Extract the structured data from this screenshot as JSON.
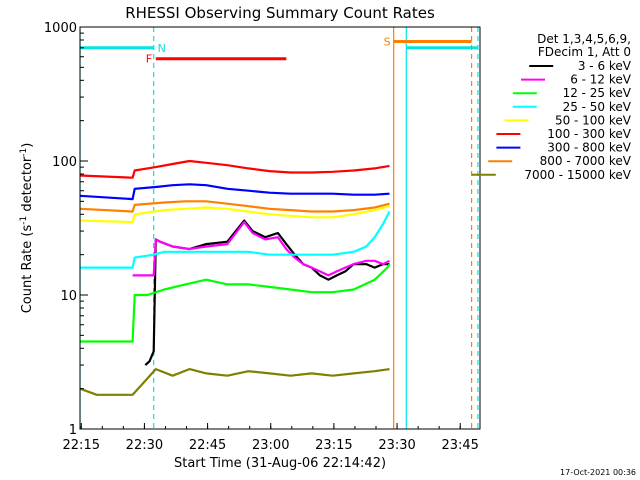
{
  "chart_data": {
    "type": "line",
    "title": "RHESSI Observing Summary Count Rates",
    "xlabel": "Start Time (31-Aug-06 22:14:42)",
    "ylabel_main": "Count Rate (s",
    "ylabel_sup1": "-1",
    "ylabel_mid": " detector",
    "ylabel_sup2": "-1",
    "ylabel_end": ")",
    "y_scale": "log",
    "ylim": [
      1,
      1000
    ],
    "xlim_minutes": [
      0,
      95
    ],
    "x_ticks": [
      {
        "label": "22:15",
        "min": 0.3
      },
      {
        "label": "22:30",
        "min": 15.3
      },
      {
        "label": "22:45",
        "min": 30.3
      },
      {
        "label": "23:00",
        "min": 45.3
      },
      {
        "label": "23:15",
        "min": 60.3
      },
      {
        "label": "23:30",
        "min": 75.3
      },
      {
        "label": "23:45",
        "min": 90.3
      }
    ],
    "y_ticks": [
      {
        "label": "1",
        "value": 1
      },
      {
        "label": "10",
        "value": 10
      },
      {
        "label": "100",
        "value": 100
      },
      {
        "label": "1000",
        "value": 1000
      }
    ],
    "legend_header": [
      "Det 1,3,4,5,6,9,",
      "FDecim 1, Att 0"
    ],
    "legend_placement": "right",
    "timestamp": "17-Oct-2021 00:36",
    "flags": [
      {
        "label": "N",
        "color": "#00e5e5",
        "level": 700,
        "segments": [
          [
            0,
            17.5
          ],
          [
            77.5,
            94.5
          ]
        ],
        "dashed_at": [
          17.5,
          94.5
        ],
        "solid_at": [
          0,
          77.5
        ]
      },
      {
        "label": "F",
        "color": "#ff0000",
        "level": 580,
        "segments": [
          [
            18,
            49
          ]
        ]
      },
      {
        "label": "S",
        "color": "#ff8000",
        "level": 780,
        "segments": [
          [
            74.5,
            93
          ]
        ],
        "solid_at": [
          74.5
        ],
        "dashed_at": [
          93
        ]
      }
    ],
    "series": [
      {
        "name": "3 - 6 keV",
        "color": "#000000",
        "points": [
          [
            15.5,
            3
          ],
          [
            16.5,
            3.2
          ],
          [
            17.5,
            3.8
          ],
          [
            18,
            26
          ],
          [
            19,
            25
          ],
          [
            22,
            23
          ],
          [
            26,
            22
          ],
          [
            30,
            24
          ],
          [
            35,
            25
          ],
          [
            37,
            30
          ],
          [
            39,
            36
          ],
          [
            41,
            30
          ],
          [
            44,
            27
          ],
          [
            47,
            29
          ],
          [
            49,
            24
          ],
          [
            51,
            20
          ],
          [
            53,
            17
          ],
          [
            55,
            16
          ],
          [
            57,
            14
          ],
          [
            59,
            13
          ],
          [
            61,
            14
          ],
          [
            63,
            15
          ],
          [
            65,
            17
          ],
          [
            68,
            17
          ],
          [
            70,
            16
          ],
          [
            72,
            17
          ],
          [
            73.5,
            17
          ]
        ]
      },
      {
        "name": "6 - 12 keV",
        "color": "#ff00ff",
        "points": [
          [
            12.5,
            14
          ],
          [
            17.5,
            14
          ],
          [
            18,
            26
          ],
          [
            19,
            25
          ],
          [
            22,
            23
          ],
          [
            26,
            22
          ],
          [
            30,
            23
          ],
          [
            35,
            24
          ],
          [
            37,
            29
          ],
          [
            39,
            35
          ],
          [
            41,
            29
          ],
          [
            44,
            26
          ],
          [
            47,
            27
          ],
          [
            49,
            22
          ],
          [
            51,
            19
          ],
          [
            53,
            17
          ],
          [
            55,
            16
          ],
          [
            57,
            15
          ],
          [
            59,
            14
          ],
          [
            61,
            15
          ],
          [
            63,
            16
          ],
          [
            65,
            17
          ],
          [
            68,
            18
          ],
          [
            70,
            18
          ],
          [
            72,
            17
          ],
          [
            73.5,
            18
          ]
        ]
      },
      {
        "name": "12 - 25 keV",
        "color": "#00ff00",
        "points": [
          [
            0,
            4.5
          ],
          [
            12.5,
            4.5
          ],
          [
            13,
            10
          ],
          [
            16,
            10
          ],
          [
            20,
            11
          ],
          [
            25,
            12
          ],
          [
            30,
            13
          ],
          [
            35,
            12
          ],
          [
            40,
            12
          ],
          [
            45,
            11.5
          ],
          [
            50,
            11
          ],
          [
            55,
            10.5
          ],
          [
            60,
            10.5
          ],
          [
            65,
            11
          ],
          [
            70,
            13
          ],
          [
            73,
            16
          ],
          [
            73.5,
            17
          ]
        ]
      },
      {
        "name": "25 - 50 keV",
        "color": "#00ffff",
        "points": [
          [
            0,
            16
          ],
          [
            12.5,
            16
          ],
          [
            13,
            19
          ],
          [
            17.5,
            20
          ],
          [
            20,
            21
          ],
          [
            25,
            21
          ],
          [
            30,
            21
          ],
          [
            35,
            21
          ],
          [
            40,
            21
          ],
          [
            45,
            20
          ],
          [
            50,
            20
          ],
          [
            55,
            20
          ],
          [
            60,
            20
          ],
          [
            65,
            21
          ],
          [
            68,
            23
          ],
          [
            70,
            27
          ],
          [
            72,
            34
          ],
          [
            73.5,
            42
          ]
        ]
      },
      {
        "name": "50 - 100 keV",
        "color": "#ffff00",
        "points": [
          [
            0,
            36
          ],
          [
            12.5,
            35
          ],
          [
            13,
            40
          ],
          [
            20,
            43
          ],
          [
            25,
            44
          ],
          [
            30,
            45
          ],
          [
            35,
            44
          ],
          [
            40,
            42
          ],
          [
            45,
            40
          ],
          [
            50,
            39
          ],
          [
            55,
            38
          ],
          [
            60,
            38
          ],
          [
            65,
            40
          ],
          [
            70,
            43
          ],
          [
            73.5,
            46
          ]
        ]
      },
      {
        "name": "100 - 300 keV",
        "color": "#ff0000",
        "points": [
          [
            0,
            78
          ],
          [
            12.5,
            75
          ],
          [
            13,
            85
          ],
          [
            18,
            90
          ],
          [
            22,
            95
          ],
          [
            26,
            100
          ],
          [
            30,
            97
          ],
          [
            35,
            93
          ],
          [
            40,
            88
          ],
          [
            45,
            84
          ],
          [
            50,
            82
          ],
          [
            55,
            82
          ],
          [
            60,
            83
          ],
          [
            65,
            85
          ],
          [
            70,
            88
          ],
          [
            73.5,
            92
          ]
        ]
      },
      {
        "name": "300 - 800 keV",
        "color": "#0000ff",
        "points": [
          [
            0,
            55
          ],
          [
            12.5,
            52
          ],
          [
            13,
            62
          ],
          [
            18,
            64
          ],
          [
            22,
            66
          ],
          [
            26,
            67
          ],
          [
            30,
            66
          ],
          [
            35,
            62
          ],
          [
            40,
            60
          ],
          [
            45,
            58
          ],
          [
            50,
            57
          ],
          [
            55,
            57
          ],
          [
            60,
            57
          ],
          [
            65,
            56
          ],
          [
            70,
            56
          ],
          [
            73.5,
            57
          ]
        ]
      },
      {
        "name": "800 - 7000 keV",
        "color": "#ff8000",
        "points": [
          [
            0,
            44
          ],
          [
            12.5,
            42
          ],
          [
            13,
            47
          ],
          [
            20,
            49
          ],
          [
            25,
            50
          ],
          [
            30,
            50
          ],
          [
            35,
            48
          ],
          [
            40,
            46
          ],
          [
            45,
            44
          ],
          [
            50,
            43
          ],
          [
            55,
            42
          ],
          [
            60,
            42
          ],
          [
            65,
            43
          ],
          [
            70,
            45
          ],
          [
            73.5,
            48
          ]
        ]
      },
      {
        "name": "7000 - 15000 keV",
        "color": "#808000",
        "points": [
          [
            0,
            2
          ],
          [
            4,
            1.8
          ],
          [
            8,
            1.8
          ],
          [
            12.5,
            1.8
          ],
          [
            15,
            2.2
          ],
          [
            18,
            2.8
          ],
          [
            22,
            2.5
          ],
          [
            26,
            2.8
          ],
          [
            30,
            2.6
          ],
          [
            35,
            2.5
          ],
          [
            40,
            2.7
          ],
          [
            45,
            2.6
          ],
          [
            50,
            2.5
          ],
          [
            55,
            2.6
          ],
          [
            60,
            2.5
          ],
          [
            65,
            2.6
          ],
          [
            70,
            2.7
          ],
          [
            73.5,
            2.8
          ]
        ]
      }
    ]
  }
}
